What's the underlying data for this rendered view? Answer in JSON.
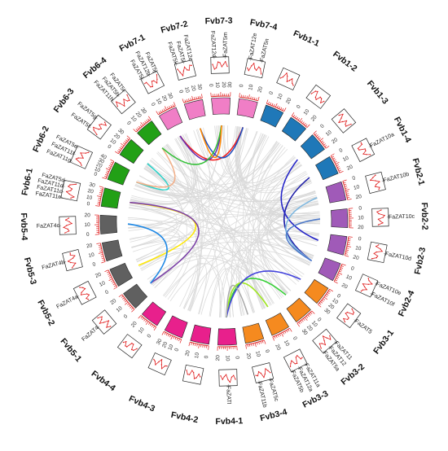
{
  "chromosomes": [
    {
      "name": "Fvb6-1",
      "color": "#22a016",
      "ticks": [
        "0",
        "10",
        "20",
        "30"
      ],
      "genes": [
        "FaZAT11e",
        "FaZAT11c",
        "FaZAT11d",
        "FaZAT5d"
      ]
    },
    {
      "name": "Fvb6-2",
      "color": "#22a016",
      "ticks": [
        "0",
        "10",
        "20",
        "30",
        "40"
      ],
      "genes": [
        "FaZAT11g",
        "FaZAT11f",
        "FaZAT5e"
      ]
    },
    {
      "name": "Fvb6-3",
      "color": "#22a016",
      "ticks": [
        "0",
        "10",
        "20",
        "30"
      ],
      "genes": [
        "FaZAT5f",
        "FaZAT5g"
      ]
    },
    {
      "name": "Fvb6-4",
      "color": "#22a016",
      "ticks": [
        "0",
        "10",
        "20",
        "30"
      ],
      "genes": [
        "FaZAT11h",
        "FaZAT5h",
        "FaZAT5i"
      ]
    },
    {
      "name": "Fvb7-1",
      "color": "#f07ec6",
      "ticks": [
        "0",
        "10",
        "20",
        "30"
      ],
      "genes": [
        "FaZAT5j",
        "FaZAT12b",
        "FaZAT5j"
      ]
    },
    {
      "name": "Fvb7-2",
      "color": "#f07ec6",
      "ticks": [
        "0",
        "10",
        "20",
        "30"
      ],
      "genes": [
        "FaZAT5k",
        "FaZAT5l",
        "FaZAT12c"
      ]
    },
    {
      "name": "Fvb7-3",
      "color": "#f07ec6",
      "ticks": [
        "0",
        "10",
        "20",
        "30"
      ],
      "genes": [
        "FaZAT12d",
        "FaZAT5m"
      ]
    },
    {
      "name": "Fvb7-4",
      "color": "#f07ec6",
      "ticks": [
        "0",
        "10",
        "20"
      ],
      "genes": [
        "FaZAT12e",
        "FaZAT5n"
      ]
    },
    {
      "name": "Fvb1-1",
      "color": "#1f78b8",
      "ticks": [
        "0",
        "10",
        "20"
      ],
      "genes": []
    },
    {
      "name": "Fvb1-2",
      "color": "#1f78b8",
      "ticks": [
        "0",
        "10",
        "20"
      ],
      "genes": []
    },
    {
      "name": "Fvb1-3",
      "color": "#1f78b8",
      "ticks": [
        "0",
        "10",
        "20"
      ],
      "genes": []
    },
    {
      "name": "Fvb1-4",
      "color": "#1f78b8",
      "ticks": [
        "0",
        "10",
        "20"
      ],
      "genes": [
        "FaZAT10a"
      ]
    },
    {
      "name": "Fvb2-1",
      "color": "#a05ab8",
      "ticks": [
        "0",
        "10",
        "20"
      ],
      "genes": [
        "FaZAT10b"
      ]
    },
    {
      "name": "Fvb2-2",
      "color": "#a05ab8",
      "ticks": [
        "0",
        "10",
        "20"
      ],
      "genes": [
        "FaZAT10c"
      ]
    },
    {
      "name": "Fvb2-3",
      "color": "#a05ab8",
      "ticks": [
        "0",
        "10",
        "20"
      ],
      "genes": [
        "FaZAT10d"
      ]
    },
    {
      "name": "Fvb2-4",
      "color": "#a05ab8",
      "ticks": [
        "0",
        "10",
        "20"
      ],
      "genes": [
        "FaZAT10e",
        "FaZAT10f"
      ]
    },
    {
      "name": "Fvb3-1",
      "color": "#f58a1f",
      "ticks": [
        "0",
        "10",
        "20",
        "30"
      ],
      "genes": [
        "FaZAT5"
      ]
    },
    {
      "name": "Fvb3-2",
      "color": "#f58a1f",
      "ticks": [
        "0",
        "10",
        "20",
        "30"
      ],
      "genes": [
        "FaZAT11",
        "FaZAT12",
        "FaZAT5a"
      ]
    },
    {
      "name": "Fvb3-3",
      "color": "#f58a1f",
      "ticks": [
        "0",
        "10",
        "20"
      ],
      "genes": [
        "FaZAT11a",
        "FaZAT12a",
        "FaZAT5b"
      ]
    },
    {
      "name": "Fvb3-4",
      "color": "#f58a1f",
      "ticks": [
        "0",
        "10",
        "20"
      ],
      "genes": [
        "FaZAT5c",
        "FaZAT11b"
      ]
    },
    {
      "name": "Fvb4-1",
      "color": "#e8208c",
      "ticks": [
        "0",
        "10",
        "20"
      ],
      "genes": [
        "FaZATl"
      ]
    },
    {
      "name": "Fvb4-2",
      "color": "#e8208c",
      "ticks": [
        "0",
        "10",
        "20"
      ],
      "genes": []
    },
    {
      "name": "Fvb4-3",
      "color": "#e8208c",
      "ticks": [
        "0",
        "10",
        "20",
        "30"
      ],
      "genes": []
    },
    {
      "name": "Fvb4-4",
      "color": "#e8208c",
      "ticks": [
        "0",
        "10",
        "20"
      ],
      "genes": []
    },
    {
      "name": "Fvb5-1",
      "color": "#606060",
      "ticks": [
        "0",
        "10",
        "20"
      ],
      "genes": [
        "FaZAT4"
      ]
    },
    {
      "name": "Fvb5-2",
      "color": "#606060",
      "ticks": [
        "0",
        "10",
        "20"
      ],
      "genes": [
        "FaZAT4a"
      ]
    },
    {
      "name": "Fvb5-3",
      "color": "#606060",
      "ticks": [
        "0",
        "10",
        "20"
      ],
      "genes": [
        "FaZAT4b"
      ]
    },
    {
      "name": "Fvb5-4",
      "color": "#606060",
      "ticks": [
        "0",
        "10",
        "20"
      ],
      "genes": [
        "FaZAT4c"
      ]
    }
  ],
  "links": [
    {
      "from": "Fvb6-2",
      "to": "Fvb6-3",
      "color": "#2bd1c8"
    },
    {
      "from": "Fvb6-2",
      "to": "Fvb6-4",
      "color": "#f2b08a"
    },
    {
      "from": "Fvb6-1",
      "to": "Fvb5-2",
      "color": "#ffe800"
    },
    {
      "from": "Fvb6-1",
      "to": "Fvb5-1",
      "color": "#7b3fa8"
    },
    {
      "from": "Fvb5-4",
      "to": "Fvb5-1",
      "color": "#1e88e5"
    },
    {
      "from": "Fvb7-1",
      "to": "Fvb7-4",
      "color": "#f02020"
    },
    {
      "from": "Fvb7-1",
      "to": "Fvb7-3",
      "color": "#6a2fb0"
    },
    {
      "from": "Fvb7-2",
      "to": "Fvb7-4",
      "color": "#2050c0"
    },
    {
      "from": "Fvb6-4",
      "to": "Fvb7-3",
      "color": "#34c038"
    },
    {
      "from": "Fvb7-2",
      "to": "Fvb7-3",
      "color": "#ff8800"
    },
    {
      "from": "Fvb1-4",
      "to": "Fvb2-4",
      "color": "#1e1ea8"
    },
    {
      "from": "Fvb1-3",
      "to": "Fvb2-3",
      "color": "#2424c8"
    },
    {
      "from": "Fvb2-1",
      "to": "Fvb2-4",
      "color": "#7fb8e0"
    },
    {
      "from": "Fvb2-2",
      "to": "Fvb2-4",
      "color": "#4c78c8"
    },
    {
      "from": "Fvb3-2",
      "to": "Fvb4-1",
      "color": "#38d038"
    },
    {
      "from": "Fvb3-3",
      "to": "Fvb4-1",
      "color": "#a0e820"
    },
    {
      "from": "Fvb3-1",
      "to": "Fvb4-1",
      "color": "#4444dd"
    },
    {
      "from": "Fvb3-4",
      "to": "Fvb4-1",
      "color": "#aaaaaa"
    }
  ]
}
